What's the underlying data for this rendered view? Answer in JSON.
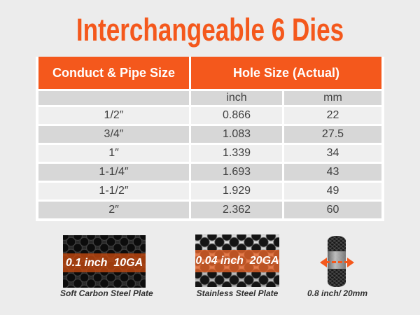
{
  "colors": {
    "accent": "#f4581c",
    "page_bg": "#ececec",
    "row_dark": "#d7d7d7",
    "row_light": "#efefef"
  },
  "title": "Interchangeable 6 Dies",
  "table": {
    "col1_header": "Conduct & Pipe Size",
    "col2_header": "Hole Size (Actual)",
    "unit_inch": "inch",
    "unit_mm": "mm",
    "rows": [
      {
        "size": "1/2″",
        "inch": "0.866",
        "mm": "22"
      },
      {
        "size": "3/4″",
        "inch": "1.083",
        "mm": "27.5"
      },
      {
        "size": "1″",
        "inch": "1.339",
        "mm": "34"
      },
      {
        "size": "1-1/4″",
        "inch": "1.693",
        "mm": "43"
      },
      {
        "size": "1-1/2″",
        "inch": "1.929",
        "mm": "49"
      },
      {
        "size": "2″",
        "inch": "2.362",
        "mm": "60"
      }
    ]
  },
  "materials": {
    "carbon": {
      "badge": "0.1 inch  10GA",
      "caption": "Soft Carbon Steel Plate"
    },
    "stainless": {
      "badge": "0.04 inch  20GA",
      "caption": "Stainless Steel Plate"
    },
    "die": {
      "caption": "0.8 inch/ 20mm"
    }
  }
}
